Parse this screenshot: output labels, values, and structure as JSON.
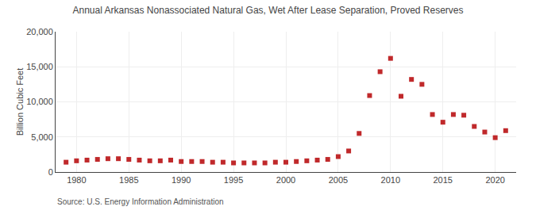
{
  "chart_data": {
    "type": "scatter",
    "title": "Annual Arkansas Nonassociated Natural Gas, Wet After Lease Separation, Proved Reserves",
    "ylabel": "Billion Cubic Feet",
    "annotation": "Source: U.S. Energy Information Administration",
    "x": [
      1979,
      1980,
      1981,
      1982,
      1983,
      1984,
      1985,
      1986,
      1987,
      1988,
      1989,
      1990,
      1991,
      1992,
      1993,
      1994,
      1995,
      1996,
      1997,
      1998,
      1999,
      2000,
      2001,
      2002,
      2003,
      2004,
      2005,
      2006,
      2007,
      2008,
      2009,
      2010,
      2011,
      2012,
      2013,
      2014,
      2015,
      2016,
      2017,
      2018,
      2019,
      2020,
      2021
    ],
    "values": [
      1400,
      1600,
      1700,
      1800,
      1900,
      1900,
      1800,
      1700,
      1600,
      1600,
      1700,
      1500,
      1500,
      1500,
      1400,
      1400,
      1300,
      1300,
      1300,
      1300,
      1400,
      1400,
      1500,
      1600,
      1700,
      1800,
      2200,
      3000,
      5500,
      10900,
      14300,
      16200,
      10800,
      13200,
      12500,
      8200,
      7100,
      8200,
      8100,
      6500,
      5700,
      4900,
      5900
    ],
    "color": "#c0292b",
    "marker": "square",
    "xlim": [
      1978,
      2022
    ],
    "xticks": [
      1980,
      1985,
      1990,
      1995,
      2000,
      2005,
      2010,
      2015,
      2020
    ],
    "ylim": [
      0,
      20000
    ],
    "yticks": [
      0,
      {
        "value": 5000,
        "label": "5,000"
      },
      {
        "value": 10000,
        "label": "10,000"
      },
      {
        "value": 15000,
        "label": "15,000"
      },
      {
        "value": 20000,
        "label": "20,000"
      }
    ],
    "grid": true
  }
}
